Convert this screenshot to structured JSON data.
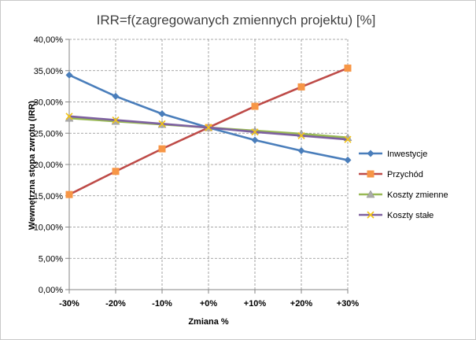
{
  "chart_data": {
    "type": "line",
    "title": "IRR=f(zagregowanych zmiennych projektu) [%]",
    "xlabel": "Zmiana %",
    "ylabel": "Wewnętrzna stopa zwrotu (IRR)",
    "categories": [
      "-30%",
      "-20%",
      "-10%",
      "+0%",
      "+10%",
      "+20%",
      "+30%"
    ],
    "ylim": [
      0,
      40
    ],
    "ytick_step": 5,
    "ytick_labels": [
      "0,00%",
      "5,00%",
      "10,00%",
      "15,00%",
      "20,00%",
      "25,00%",
      "30,00%",
      "35,00%",
      "40,00%"
    ],
    "grid": true,
    "legend_position": "right",
    "series": [
      {
        "name": "Inwestycje",
        "color": "#4a7ebb",
        "marker": "diamond",
        "values": [
          34.3,
          30.9,
          28.1,
          25.9,
          23.9,
          22.2,
          20.7
        ]
      },
      {
        "name": "Przychód",
        "color": "#be4b48",
        "marker": "square",
        "marker_color": "#f79646",
        "values": [
          15.2,
          18.9,
          22.5,
          25.9,
          29.3,
          32.4,
          35.4
        ]
      },
      {
        "name": "Koszty zmienne",
        "color": "#98b954",
        "marker": "triangle",
        "marker_color": "#aaaaaa",
        "values": [
          27.4,
          26.9,
          26.4,
          25.9,
          25.4,
          24.9,
          24.3
        ]
      },
      {
        "name": "Koszty stałe",
        "color": "#7d60a0",
        "marker": "x",
        "marker_color": "#f2c314",
        "values": [
          27.7,
          27.1,
          26.5,
          25.9,
          25.2,
          24.6,
          24.0
        ]
      }
    ]
  }
}
